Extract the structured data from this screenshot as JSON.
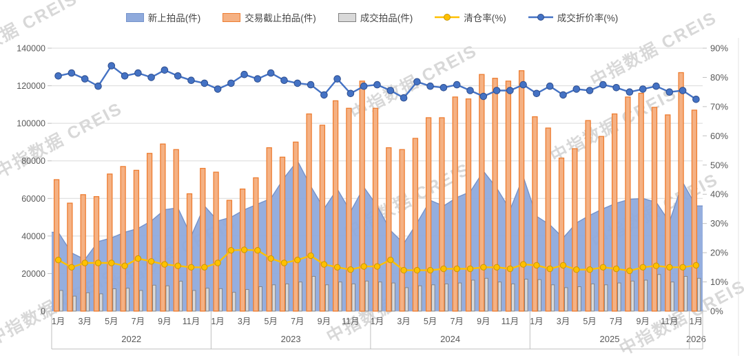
{
  "watermark_text": "中指数据 CREIS",
  "chart_data": {
    "type": "combo",
    "legend_position": "top",
    "grid": true,
    "y_left": {
      "min": 0,
      "max": 140000,
      "step": 20000,
      "tick_labels": [
        "0",
        "20000",
        "40000",
        "60000",
        "80000",
        "100000",
        "120000",
        "140000"
      ]
    },
    "y_right": {
      "min": 0,
      "max": 90,
      "step": 10,
      "tick_labels": [
        "0%",
        "10%",
        "20%",
        "30%",
        "40%",
        "50%",
        "60%",
        "70%",
        "80%",
        "90%"
      ]
    },
    "x_axis": {
      "month_tick_labels": [
        "1月",
        "3月",
        "5月",
        "7月",
        "9月",
        "11月"
      ],
      "year_groups": [
        {
          "label": "2022",
          "count": 12
        },
        {
          "label": "2023",
          "count": 12
        },
        {
          "label": "2024",
          "count": 12
        },
        {
          "label": "2025",
          "count": 12
        },
        {
          "label": "2026",
          "count": 1
        }
      ]
    },
    "series": [
      {
        "name": "新上拍品(件)",
        "type": "area",
        "axis": "left",
        "fill": "#8FAADC",
        "stroke": "#7593CB",
        "swatch": "rect",
        "values": [
          42000,
          31000,
          27500,
          37000,
          39000,
          42000,
          44000,
          48000,
          54000,
          55000,
          40000,
          56000,
          48000,
          50000,
          54000,
          57000,
          60000,
          71000,
          80000,
          66500,
          54500,
          65000,
          53000,
          66000,
          56000,
          43000,
          36000,
          47000,
          59000,
          56000,
          60500,
          63500,
          74500,
          65500,
          54000,
          71500,
          50500,
          46000,
          39000,
          47000,
          51000,
          54500,
          57500,
          59500,
          60000,
          58000,
          47500,
          68500,
          56000
        ]
      },
      {
        "name": "交易截止拍品(件)",
        "type": "bar",
        "axis": "left",
        "fill": "#F5B183",
        "stroke": "#ED7D31",
        "swatch": "rect",
        "values": [
          70000,
          57500,
          62000,
          61000,
          73000,
          77000,
          75000,
          84000,
          89000,
          86000,
          62500,
          76000,
          74000,
          59000,
          65000,
          71000,
          87000,
          82000,
          90000,
          105000,
          99000,
          112000,
          108000,
          122500,
          108000,
          87000,
          86000,
          92000,
          103000,
          103000,
          114000,
          113000,
          126000,
          124000,
          122500,
          128000,
          103500,
          97500,
          81500,
          86500,
          101500,
          93000,
          105000,
          114000,
          116000,
          108500,
          104500,
          127000,
          107000
        ]
      },
      {
        "name": "成交拍品(件)",
        "type": "bar",
        "axis": "left",
        "fill": "#D9D9D9",
        "stroke": "#7F7F7F",
        "swatch": "rect",
        "values": [
          11000,
          8000,
          9800,
          9200,
          11900,
          12200,
          11000,
          13800,
          13500,
          15900,
          11000,
          12200,
          12000,
          10000,
          11500,
          13000,
          14000,
          14500,
          15500,
          18500,
          14000,
          15500,
          14500,
          16000,
          15500,
          15000,
          12500,
          13500,
          14000,
          14500,
          15000,
          16500,
          17500,
          15500,
          14500,
          17000,
          16800,
          14000,
          12500,
          13000,
          14500,
          14000,
          15000,
          16000,
          16500,
          19500,
          15500,
          18500,
          17500
        ]
      },
      {
        "name": "清仓率(%)",
        "type": "line",
        "axis": "right",
        "color": "#FFC000",
        "marker_stroke": "#C99700",
        "swatch": "line",
        "values": [
          17.5,
          15.0,
          16.5,
          16.5,
          16.5,
          15.5,
          18.0,
          17.0,
          16.0,
          15.5,
          15.0,
          15.0,
          16.5,
          20.8,
          21.0,
          20.8,
          18.0,
          16.5,
          17.5,
          19.0,
          16.0,
          15.0,
          14.2,
          15.3,
          15.3,
          17.5,
          14.0,
          14.0,
          14.0,
          14.5,
          14.5,
          14.5,
          15.0,
          15.0,
          14.5,
          16.0,
          15.7,
          14.5,
          15.7,
          14.2,
          14.2,
          15.0,
          14.5,
          13.8,
          15.0,
          15.5,
          15.0,
          15.0,
          15.7
        ]
      },
      {
        "name": "成交折价率(%)",
        "type": "line",
        "axis": "right",
        "color": "#4472C4",
        "marker_stroke": "#2E4E8E",
        "swatch": "line",
        "values": [
          80.5,
          81.5,
          79.5,
          77.0,
          84.0,
          80.5,
          81.5,
          80.0,
          82.5,
          80.5,
          79.0,
          78.0,
          76.0,
          78.0,
          81.0,
          79.5,
          81.5,
          79.0,
          78.0,
          77.5,
          74.0,
          79.5,
          74.5,
          77.0,
          77.5,
          75.5,
          73.0,
          78.5,
          77.0,
          76.5,
          77.5,
          75.5,
          73.5,
          75.5,
          75.5,
          77.5,
          74.5,
          77.0,
          74.0,
          76.0,
          75.5,
          77.5,
          76.5,
          75.0,
          76.0,
          77.0,
          75.0,
          75.5,
          72.5
        ]
      }
    ],
    "colors": {
      "gridline": "#D9D9D9",
      "axis_line": "#BFBFBF",
      "tick_text": "#595959",
      "watermark": "#7D7D7D"
    }
  }
}
